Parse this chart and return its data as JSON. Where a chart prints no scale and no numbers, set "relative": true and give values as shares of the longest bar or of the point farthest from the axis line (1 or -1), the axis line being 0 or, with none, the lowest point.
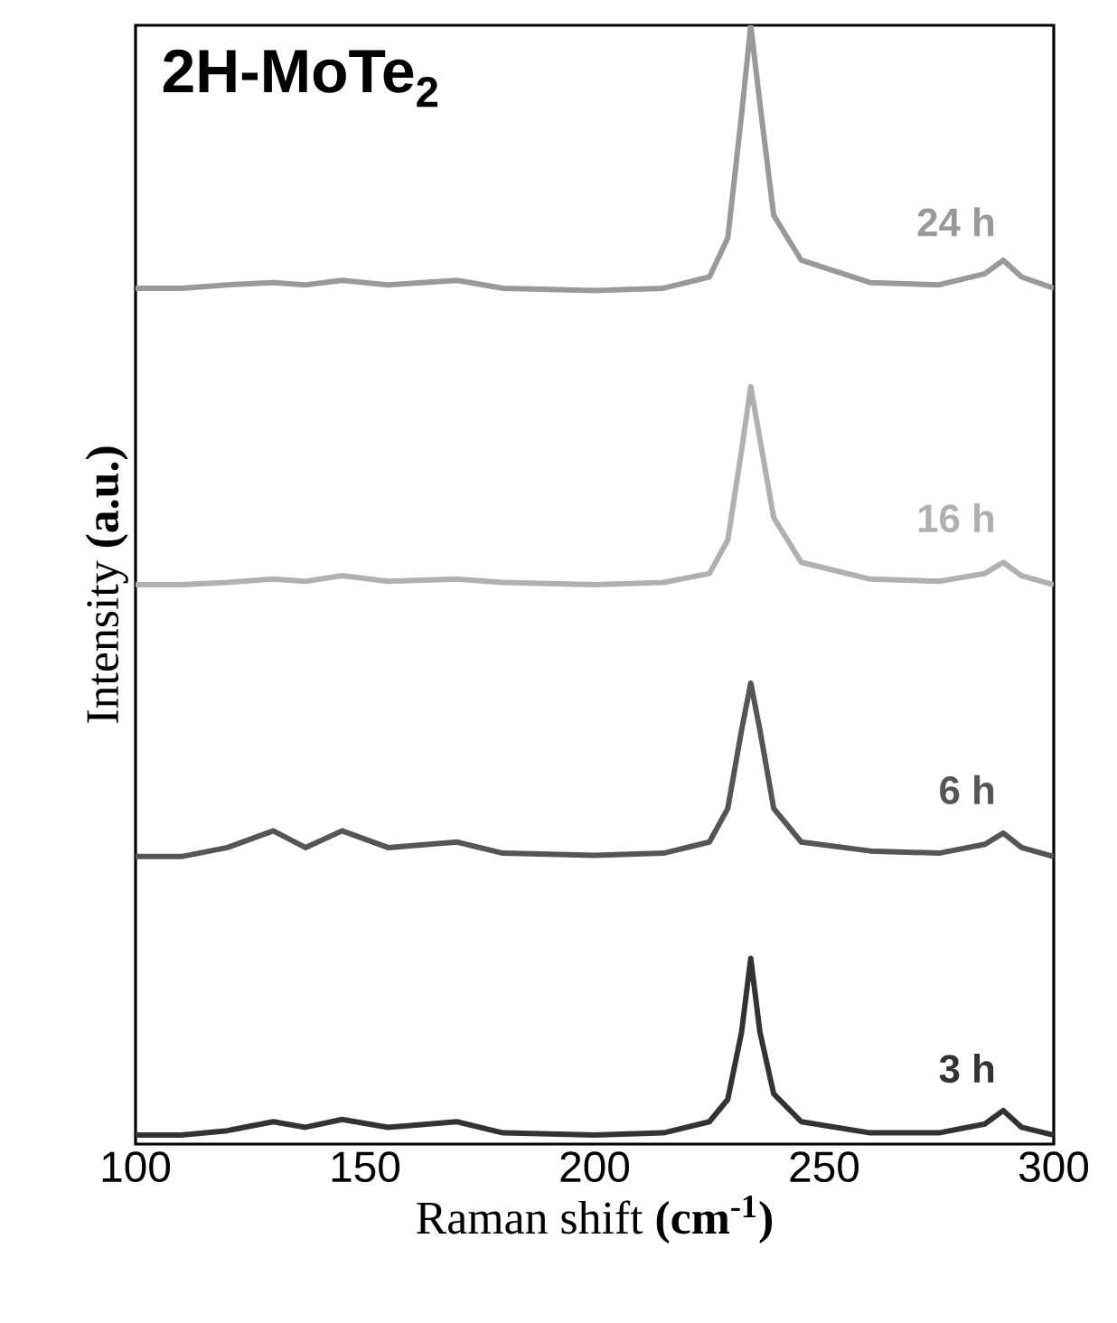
{
  "chart_data": {
    "type": "line",
    "title": "2H-MoTe$_{2}$",
    "xlabel": "Raman shift **(cm$^{-1}$)**",
    "ylabel": "Intensity **(a.u.)**",
    "relative": true,
    "xlim": [
      100,
      300
    ],
    "xticks": [
      100,
      150,
      200,
      250,
      300
    ],
    "x": [
      100,
      110,
      120,
      130,
      137,
      145,
      155,
      170,
      180,
      200,
      215,
      225,
      229,
      232,
      234,
      236,
      239,
      245,
      260,
      275,
      285,
      289,
      293,
      300
    ],
    "series": [
      {
        "name": "3 h",
        "color": "#333333",
        "values": [
          0.008,
          0.008,
          0.012,
          0.02,
          0.015,
          0.022,
          0.015,
          0.02,
          0.01,
          0.008,
          0.01,
          0.02,
          0.04,
          0.1,
          0.166,
          0.1,
          0.045,
          0.02,
          0.01,
          0.01,
          0.018,
          0.03,
          0.015,
          0.008
        ]
      },
      {
        "name": "6 h",
        "color": "#555555",
        "values": [
          0.257,
          0.257,
          0.265,
          0.28,
          0.265,
          0.28,
          0.265,
          0.27,
          0.26,
          0.258,
          0.26,
          0.27,
          0.3,
          0.37,
          0.412,
          0.37,
          0.3,
          0.27,
          0.262,
          0.26,
          0.268,
          0.278,
          0.265,
          0.257
        ]
      },
      {
        "name": "16 h",
        "color": "#b0b0b0",
        "values": [
          0.5,
          0.5,
          0.502,
          0.505,
          0.503,
          0.508,
          0.503,
          0.505,
          0.502,
          0.5,
          0.502,
          0.51,
          0.54,
          0.62,
          0.677,
          0.63,
          0.56,
          0.52,
          0.505,
          0.503,
          0.51,
          0.52,
          0.508,
          0.5
        ]
      },
      {
        "name": "24 h",
        "color": "#999999",
        "values": [
          0.765,
          0.765,
          0.768,
          0.77,
          0.768,
          0.772,
          0.768,
          0.772,
          0.765,
          0.763,
          0.765,
          0.775,
          0.81,
          0.92,
          1.0,
          0.93,
          0.83,
          0.79,
          0.77,
          0.768,
          0.778,
          0.79,
          0.775,
          0.765
        ]
      }
    ]
  }
}
